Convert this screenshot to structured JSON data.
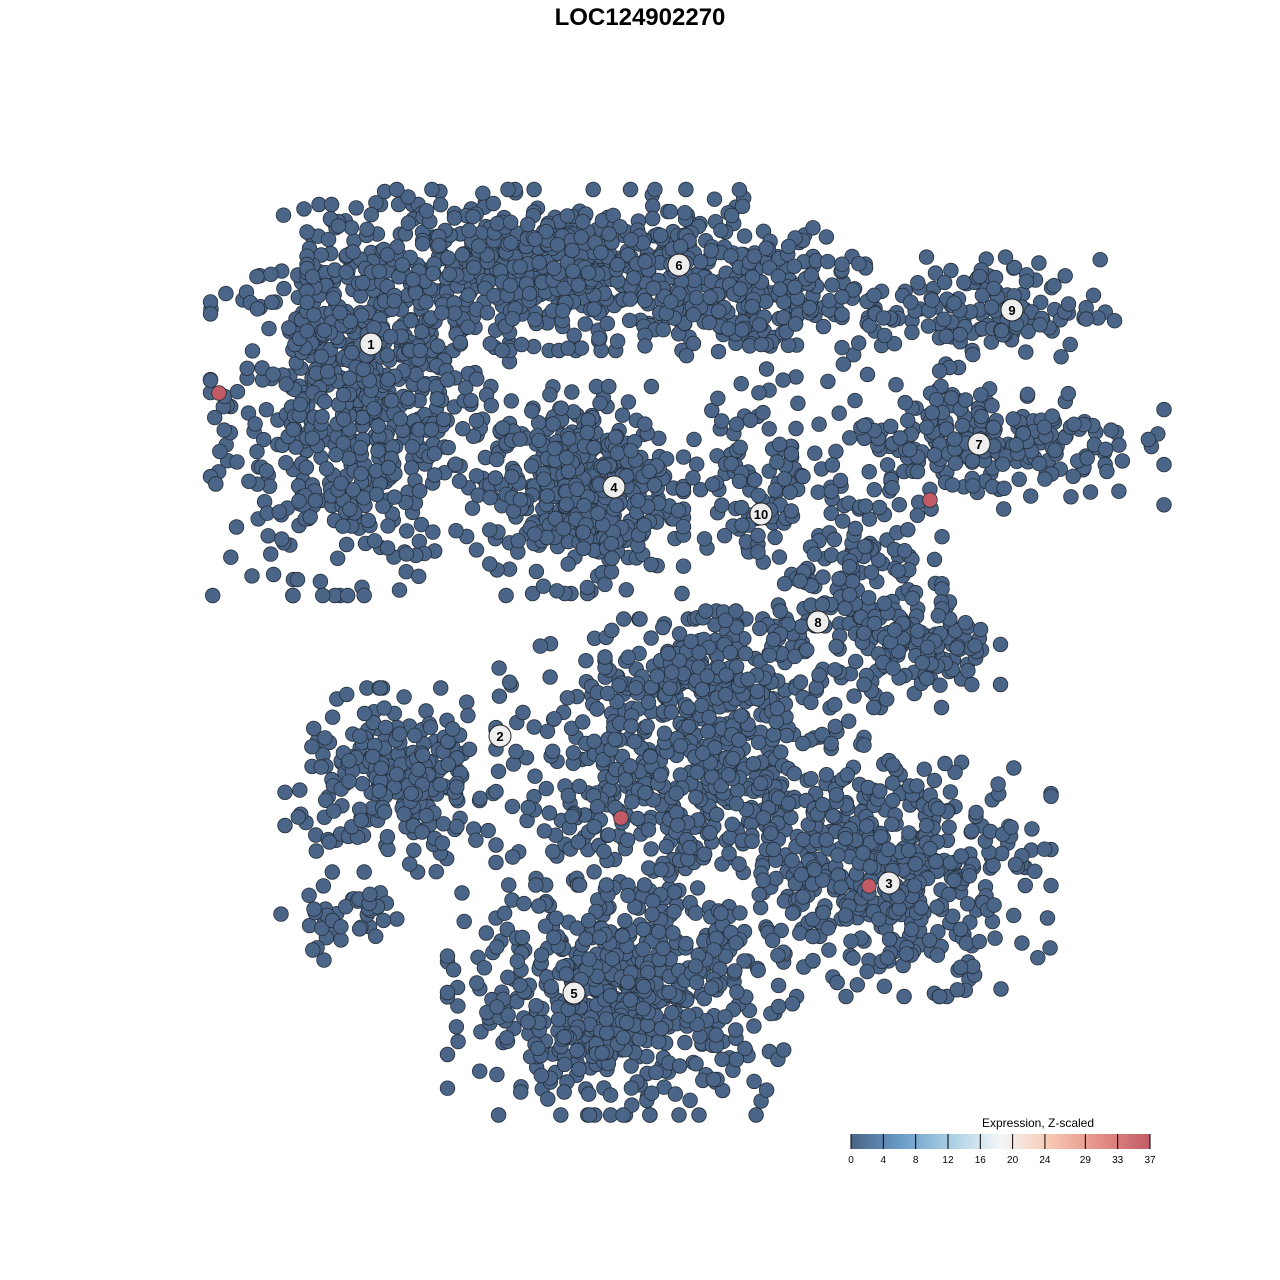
{
  "chart_data": {
    "type": "scatter",
    "title": "LOC124902270",
    "xlabel": "",
    "ylabel": "",
    "grid": false,
    "axes_visible": false,
    "point_color_base": "#4a6587",
    "point_color_high": "#c25b66",
    "point_stroke": "#26303c",
    "point_groups": [
      {
        "center": [
          -28,
          24
        ],
        "spread": [
          6.5,
          8.5
        ],
        "count": 700
      },
      {
        "center": [
          -8,
          37
        ],
        "spread": [
          11,
          3.5
        ],
        "count": 700
      },
      {
        "center": [
          12,
          34
        ],
        "spread": [
          5,
          3
        ],
        "count": 150
      },
      {
        "center": [
          34,
          33
        ],
        "spread": [
          6,
          2.5
        ],
        "count": 150
      },
      {
        "center": [
          34,
          20
        ],
        "spread": [
          8,
          3
        ],
        "count": 250
      },
      {
        "center": [
          -6,
          15
        ],
        "spread": [
          4.5,
          4.5
        ],
        "count": 450
      },
      {
        "center": [
          12,
          17
        ],
        "spread": [
          3.5,
          4
        ],
        "count": 100
      },
      {
        "center": [
          21,
          6
        ],
        "spread": [
          4,
          5
        ],
        "count": 150
      },
      {
        "center": [
          28,
          -1
        ],
        "spread": [
          3.5,
          2.5
        ],
        "count": 120
      },
      {
        "center": [
          -24,
          -14
        ],
        "spread": [
          5,
          4
        ],
        "count": 250
      },
      {
        "center": [
          4,
          -14
        ],
        "spread": [
          8,
          7
        ],
        "count": 600
      },
      {
        "center": [
          25,
          -23
        ],
        "spread": [
          7,
          5.5
        ],
        "count": 450
      },
      {
        "center": [
          -2,
          -36
        ],
        "spread": [
          7.5,
          5
        ],
        "count": 600
      },
      {
        "center": [
          8,
          -4
        ],
        "spread": [
          5,
          3
        ],
        "count": 150
      },
      {
        "center": [
          -29,
          -28
        ],
        "spread": [
          3,
          2
        ],
        "count": 40
      }
    ],
    "high_points": [
      {
        "x": -42.1,
        "y": 24.7,
        "value": 37
      },
      {
        "x": 29.0,
        "y": 14.0,
        "value": 37
      },
      {
        "x": -1.9,
        "y": -17.8,
        "value": 37
      },
      {
        "x": 22.9,
        "y": -24.6,
        "value": 37
      }
    ],
    "cluster_labels": [
      {
        "label": "1",
        "x": -26.9,
        "y": 29.6
      },
      {
        "label": "2",
        "x": -14.0,
        "y": -9.6
      },
      {
        "label": "3",
        "x": 24.9,
        "y": -24.3
      },
      {
        "label": "4",
        "x": -2.6,
        "y": 15.3
      },
      {
        "label": "5",
        "x": -6.6,
        "y": -35.3
      },
      {
        "label": "6",
        "x": 3.9,
        "y": 37.5
      },
      {
        "label": "7",
        "x": 33.9,
        "y": 19.6
      },
      {
        "label": "8",
        "x": 17.8,
        "y": 1.8
      },
      {
        "label": "9",
        "x": 37.2,
        "y": 33.0
      },
      {
        "label": "10",
        "x": 12.1,
        "y": 12.6
      }
    ],
    "legend": {
      "title": "Expression, Z-scaled",
      "position": "bottom-right",
      "range": [
        0,
        37
      ],
      "ticks": [
        "0",
        "4",
        "8",
        "12",
        "16",
        "20",
        "24",
        "29",
        "33",
        "37"
      ],
      "colors": [
        "#4a6587",
        "#6a9cc9",
        "#a8cfe3",
        "#f4f6f8",
        "#f7c8b0",
        "#e38f86",
        "#c25b66"
      ]
    }
  }
}
